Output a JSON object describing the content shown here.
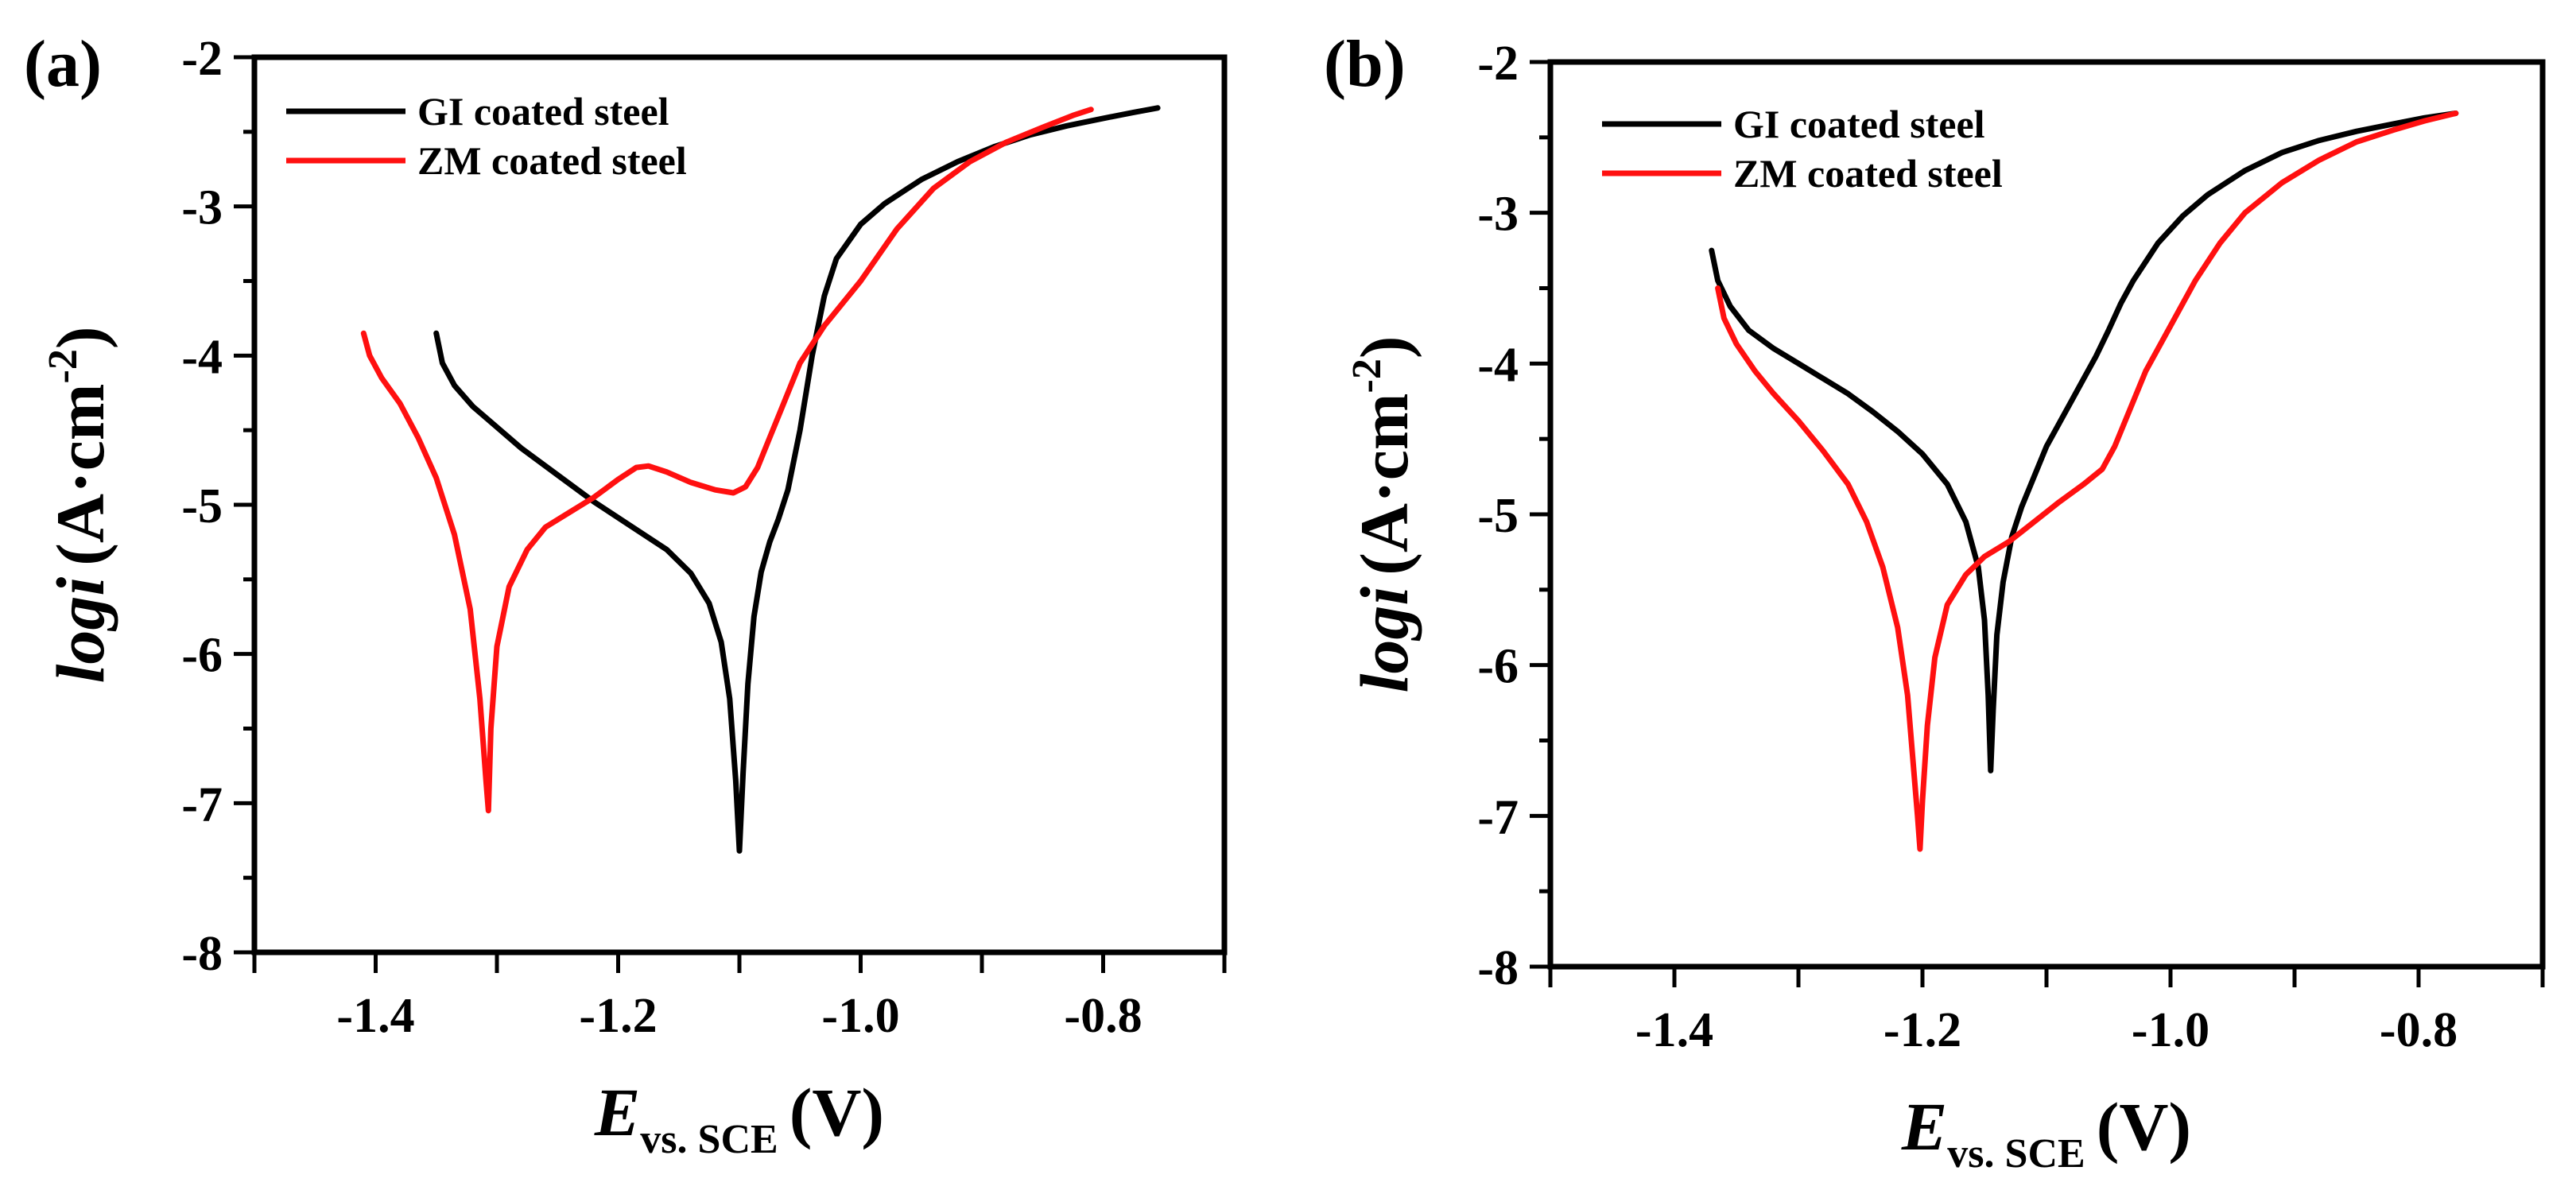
{
  "chart_data": [
    {
      "panel": "(a)",
      "type": "line",
      "xlabel": {
        "main": "E",
        "sub": "vs. SCE",
        "unit": "(V)"
      },
      "ylabel": {
        "italic": "logi",
        "unit_pre": "(A",
        "dot": "·",
        "unit_mid": "cm",
        "sup": "-2",
        "unit_post": ")"
      },
      "xlim": [
        -1.5,
        -0.7
      ],
      "ylim": [
        -8,
        -2
      ],
      "xticks": [
        -1.4,
        -1.2,
        -1.0,
        -0.8
      ],
      "xtick_labels": [
        "-1.4",
        "-1.2",
        "-1.0",
        "-0.8"
      ],
      "yticks": [
        -8,
        -7,
        -6,
        -5,
        -4,
        -3,
        -2
      ],
      "ytick_labels": [
        "-8",
        "-7",
        "-6",
        "-5",
        "-4",
        "-3",
        "-2"
      ],
      "legend": {
        "position": "top-left"
      },
      "series": [
        {
          "name": "GI coated steel",
          "color": "#000000",
          "x": [
            -1.35,
            -1.345,
            -1.335,
            -1.32,
            -1.3,
            -1.28,
            -1.25,
            -1.22,
            -1.19,
            -1.16,
            -1.14,
            -1.125,
            -1.115,
            -1.108,
            -1.103,
            -1.1,
            -1.097,
            -1.093,
            -1.088,
            -1.082,
            -1.075,
            -1.068,
            -1.06,
            -1.05,
            -1.04,
            -1.03,
            -1.02,
            -1.0,
            -0.98,
            -0.95,
            -0.92,
            -0.89,
            -0.86,
            -0.83,
            -0.8,
            -0.775,
            -0.755
          ],
          "y": [
            -3.85,
            -4.05,
            -4.2,
            -4.34,
            -4.48,
            -4.62,
            -4.8,
            -4.98,
            -5.14,
            -5.3,
            -5.46,
            -5.66,
            -5.92,
            -6.3,
            -6.85,
            -7.32,
            -6.8,
            -6.2,
            -5.75,
            -5.45,
            -5.25,
            -5.1,
            -4.9,
            -4.5,
            -4.0,
            -3.6,
            -3.35,
            -3.12,
            -2.98,
            -2.82,
            -2.7,
            -2.6,
            -2.52,
            -2.46,
            -2.41,
            -2.37,
            -2.34
          ]
        },
        {
          "name": "ZM coated steel",
          "color": "#ff1010",
          "x": [
            -1.41,
            -1.405,
            -1.395,
            -1.38,
            -1.365,
            -1.35,
            -1.335,
            -1.322,
            -1.314,
            -1.309,
            -1.307,
            -1.305,
            -1.3,
            -1.29,
            -1.275,
            -1.26,
            -1.24,
            -1.22,
            -1.2,
            -1.185,
            -1.175,
            -1.16,
            -1.14,
            -1.12,
            -1.105,
            -1.095,
            -1.085,
            -1.075,
            -1.065,
            -1.05,
            -1.03,
            -1.0,
            -0.97,
            -0.94,
            -0.91,
            -0.88,
            -0.85,
            -0.825,
            -0.81
          ],
          "y": [
            -3.85,
            -4.0,
            -4.15,
            -4.32,
            -4.55,
            -4.82,
            -5.2,
            -5.7,
            -6.3,
            -6.85,
            -7.05,
            -6.5,
            -5.95,
            -5.55,
            -5.3,
            -5.15,
            -5.05,
            -4.95,
            -4.83,
            -4.75,
            -4.74,
            -4.78,
            -4.85,
            -4.9,
            -4.92,
            -4.88,
            -4.75,
            -4.55,
            -4.35,
            -4.05,
            -3.8,
            -3.5,
            -3.15,
            -2.88,
            -2.7,
            -2.57,
            -2.47,
            -2.39,
            -2.35
          ]
        }
      ]
    },
    {
      "panel": "(b)",
      "type": "line",
      "xlabel": {
        "main": "E",
        "sub": "vs. SCE",
        "unit": "(V)"
      },
      "ylabel": {
        "italic": "logi",
        "unit_pre": "(A",
        "dot": "·",
        "unit_mid": "cm",
        "sup": "-2",
        "unit_post": ")"
      },
      "xlim": [
        -1.5,
        -0.7
      ],
      "ylim": [
        -8,
        -2
      ],
      "xticks": [
        -1.4,
        -1.2,
        -1.0,
        -0.8
      ],
      "xtick_labels": [
        "-1.4",
        "-1.2",
        "-1.0",
        "-0.8"
      ],
      "yticks": [
        -8,
        -7,
        -6,
        -5,
        -4,
        -3,
        -2
      ],
      "ytick_labels": [
        "-8",
        "-7",
        "-6",
        "-5",
        "-4",
        "-3",
        "-2"
      ],
      "legend": {
        "position": "top-left"
      },
      "series": [
        {
          "name": "GI coated steel",
          "color": "#000000",
          "x": [
            -1.37,
            -1.365,
            -1.355,
            -1.34,
            -1.32,
            -1.3,
            -1.28,
            -1.26,
            -1.24,
            -1.22,
            -1.2,
            -1.18,
            -1.165,
            -1.155,
            -1.15,
            -1.147,
            -1.145,
            -1.143,
            -1.14,
            -1.135,
            -1.128,
            -1.12,
            -1.11,
            -1.1,
            -1.09,
            -1.08,
            -1.07,
            -1.06,
            -1.05,
            -1.04,
            -1.03,
            -1.01,
            -0.99,
            -0.97,
            -0.94,
            -0.91,
            -0.88,
            -0.85,
            -0.82,
            -0.795,
            -0.77
          ],
          "y": [
            -3.25,
            -3.45,
            -3.62,
            -3.78,
            -3.9,
            -4.0,
            -4.1,
            -4.2,
            -4.32,
            -4.45,
            -4.6,
            -4.8,
            -5.05,
            -5.35,
            -5.7,
            -6.2,
            -6.7,
            -6.3,
            -5.8,
            -5.45,
            -5.15,
            -4.95,
            -4.75,
            -4.55,
            -4.4,
            -4.25,
            -4.1,
            -3.95,
            -3.78,
            -3.6,
            -3.45,
            -3.2,
            -3.02,
            -2.88,
            -2.72,
            -2.6,
            -2.52,
            -2.46,
            -2.41,
            -2.37,
            -2.34
          ]
        },
        {
          "name": "ZM coated steel",
          "color": "#ff1010",
          "x": [
            -1.365,
            -1.36,
            -1.35,
            -1.335,
            -1.32,
            -1.3,
            -1.28,
            -1.26,
            -1.245,
            -1.232,
            -1.22,
            -1.212,
            -1.207,
            -1.204,
            -1.202,
            -1.2,
            -1.196,
            -1.19,
            -1.18,
            -1.165,
            -1.15,
            -1.13,
            -1.11,
            -1.09,
            -1.07,
            -1.055,
            -1.045,
            -1.035,
            -1.02,
            -1.0,
            -0.98,
            -0.96,
            -0.94,
            -0.91,
            -0.88,
            -0.85,
            -0.82,
            -0.795,
            -0.77
          ],
          "y": [
            -3.5,
            -3.7,
            -3.87,
            -4.05,
            -4.2,
            -4.38,
            -4.58,
            -4.8,
            -5.05,
            -5.35,
            -5.75,
            -6.2,
            -6.7,
            -7.0,
            -7.22,
            -6.9,
            -6.4,
            -5.95,
            -5.6,
            -5.4,
            -5.28,
            -5.18,
            -5.05,
            -4.92,
            -4.8,
            -4.7,
            -4.55,
            -4.35,
            -4.05,
            -3.75,
            -3.45,
            -3.2,
            -3.0,
            -2.8,
            -2.65,
            -2.53,
            -2.45,
            -2.39,
            -2.34
          ]
        }
      ]
    }
  ]
}
